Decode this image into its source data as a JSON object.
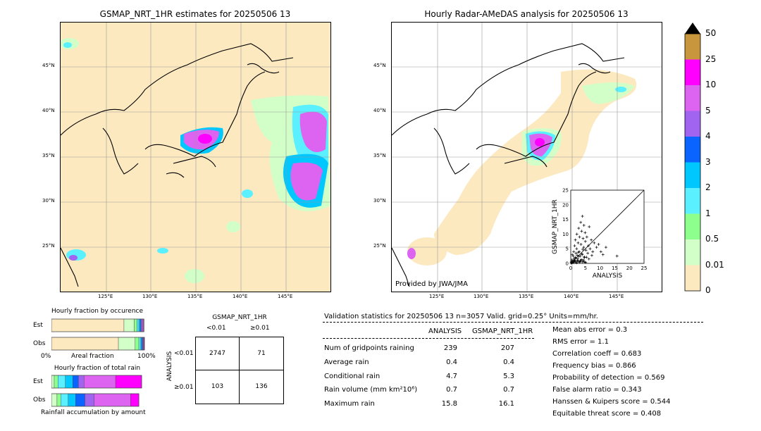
{
  "left_map": {
    "title": "GSMAP_NRT_1HR estimates for 20250506 13",
    "lat_ticks": [
      "45°N",
      "40°N",
      "35°N",
      "30°N",
      "25°N"
    ],
    "lon_ticks": [
      "125°E",
      "130°E",
      "135°E",
      "140°E",
      "145°E"
    ]
  },
  "right_map": {
    "title": "Hourly Radar-AMeDAS analysis for 20250506 13",
    "lat_ticks": [
      "45°N",
      "40°N",
      "35°N",
      "30°N",
      "25°N"
    ],
    "lon_ticks": [
      "125°E",
      "130°E",
      "135°E",
      "140°E",
      "145°E"
    ],
    "credit": "Provided by JWA/JMA"
  },
  "colorbar": {
    "labels": [
      "50",
      "25",
      "10",
      "5",
      "4",
      "3",
      "2",
      "1",
      "0.5",
      "0.01",
      "0"
    ],
    "colors": [
      "#c8963c",
      "#ff00ff",
      "#dc64f0",
      "#a064f0",
      "#0a64ff",
      "#00c8ff",
      "#5af0ff",
      "#8cff8c",
      "#d2ffc8",
      "#fde9c0"
    ]
  },
  "chart_data": [
    {
      "type": "scatter",
      "title": "",
      "xlabel": "ANALYSIS",
      "ylabel": "GSMAP_NRT_1HR",
      "xlim": [
        0,
        25
      ],
      "ylim": [
        0,
        25
      ],
      "xticks": [
        "0",
        "5",
        "10",
        "15",
        "20",
        "25"
      ],
      "yticks": [
        "0",
        "5",
        "10",
        "15",
        "20",
        "25"
      ],
      "x": [
        0.2,
        0.4,
        0.5,
        0.6,
        0.8,
        1.0,
        1.1,
        1.3,
        1.5,
        1.6,
        1.8,
        2.0,
        2.1,
        2.3,
        2.5,
        2.7,
        2.9,
        3.0,
        3.2,
        3.4,
        3.5,
        3.7,
        3.9,
        4.0,
        4.2,
        4.4,
        4.5,
        4.7,
        4.9,
        5.0,
        5.2,
        5.5,
        5.8,
        6.0,
        6.3,
        6.6,
        7.0,
        7.5,
        8.0,
        8.8,
        9.5,
        10.3,
        11.0,
        12.0,
        15.8,
        0.3,
        0.7,
        1.2,
        1.7,
        2.2,
        2.6,
        3.1,
        3.6,
        4.1,
        4.6,
        5.1,
        0.1,
        0.9,
        1.4,
        1.9,
        2.4,
        2.8,
        3.3,
        3.8,
        4.3,
        4.8,
        5.4,
        6.2,
        7.2,
        0.5,
        1.0,
        1.5,
        2.0,
        2.5,
        3.0,
        3.5,
        4.0,
        4.5
      ],
      "y": [
        0.5,
        1.2,
        3.0,
        0.8,
        2.5,
        4.0,
        1.5,
        6.0,
        2.0,
        8.0,
        3.5,
        5.0,
        10.0,
        1.0,
        7.0,
        12.0,
        4.0,
        9.0,
        2.5,
        14.0,
        6.5,
        11.0,
        3.0,
        16.1,
        8.5,
        5.5,
        13.0,
        2.0,
        10.5,
        7.5,
        4.5,
        9.0,
        3.5,
        6.0,
        12.5,
        5.0,
        8.0,
        4.0,
        7.0,
        5.5,
        6.5,
        4.0,
        3.0,
        5.5,
        2.5,
        0.2,
        0.4,
        0.9,
        1.8,
        2.8,
        3.8,
        0.6,
        1.3,
        4.8,
        2.2,
        0.3,
        0.1,
        0.7,
        1.1,
        0.5,
        1.6,
        2.4,
        0.9,
        3.3,
        1.2,
        0.4,
        2.1,
        1.5,
        2.7,
        0.2,
        0.3,
        0.6,
        0.2,
        0.8,
        0.4,
        1.0,
        0.5,
        0.7
      ]
    },
    {
      "type": "bar",
      "title": "Hourly fraction by occurence",
      "categories": [
        "Est",
        "Obs"
      ],
      "xlabel": "Areal fraction",
      "xlim_labels": [
        "0%",
        "100%"
      ],
      "series": [
        {
          "name": "0-0.01",
          "color": "#fde9c0",
          "values": [
            0.78,
            0.72
          ]
        },
        {
          "name": "0.01-0.5",
          "color": "#d2ffc8",
          "values": [
            0.11,
            0.18
          ]
        },
        {
          "name": "0.5-1",
          "color": "#8cff8c",
          "values": [
            0.03,
            0.04
          ]
        },
        {
          "name": "1-2",
          "color": "#5af0ff",
          "values": [
            0.02,
            0.02
          ]
        },
        {
          "name": "2-3",
          "color": "#00c8ff",
          "values": [
            0.015,
            0.01
          ]
        },
        {
          "name": "3-4",
          "color": "#0a64ff",
          "values": [
            0.01,
            0.01
          ]
        },
        {
          "name": "4-5",
          "color": "#a064f0",
          "values": [
            0.015,
            0.01
          ]
        },
        {
          "name": "5-10",
          "color": "#dc64f0",
          "values": [
            0.01,
            0.005
          ]
        },
        {
          "name": "10-25",
          "color": "#ff00ff",
          "values": [
            0.005,
            0.005
          ]
        },
        {
          "name": "25-50",
          "color": "#c8963c",
          "values": [
            0.0,
            0.0
          ]
        }
      ]
    },
    {
      "type": "bar",
      "title": "Hourly fraction of total rain",
      "categories": [
        "Est",
        "Obs"
      ],
      "xlabel": "Rainfall accumulation by amount",
      "series": [
        {
          "name": "0-0.01",
          "color": "#fde9c0",
          "values": [
            0.0,
            0.0
          ]
        },
        {
          "name": "0.01-0.5",
          "color": "#d2ffc8",
          "values": [
            0.03,
            0.06
          ]
        },
        {
          "name": "0.5-1",
          "color": "#8cff8c",
          "values": [
            0.04,
            0.04
          ]
        },
        {
          "name": "1-2",
          "color": "#5af0ff",
          "values": [
            0.08,
            0.08
          ]
        },
        {
          "name": "2-3",
          "color": "#00c8ff",
          "values": [
            0.08,
            0.08
          ]
        },
        {
          "name": "3-4",
          "color": "#0a64ff",
          "values": [
            0.06,
            0.1
          ]
        },
        {
          "name": "4-5",
          "color": "#a064f0",
          "values": [
            0.06,
            0.1
          ]
        },
        {
          "name": "5-10",
          "color": "#dc64f0",
          "values": [
            0.34,
            0.39
          ]
        },
        {
          "name": "10-25",
          "color": "#ff00ff",
          "values": [
            0.28,
            0.09
          ]
        },
        {
          "name": "25-50",
          "color": "#c8963c",
          "values": [
            0.0,
            0.0
          ]
        }
      ]
    },
    {
      "type": "table",
      "title": "GSMAP_NRT_1HR",
      "col_headers": [
        "<0.01",
        "≥0.01"
      ],
      "row_headers": [
        "<0.01",
        "≥0.01"
      ],
      "row_axis_label": "ANALYSIS",
      "cells": [
        [
          "2747",
          "71"
        ],
        [
          "103",
          "136"
        ]
      ]
    }
  ],
  "validation": {
    "header": "Validation statistics for 20250506 13  n=3057 Valid. grid=0.25°  Units=mm/hr.",
    "col_analysis": "ANALYSIS",
    "col_gsmap": "GSMAP_NRT_1HR",
    "rows": [
      {
        "label": "Num of gridpoints raining",
        "analysis": "239",
        "gsmap": "207"
      },
      {
        "label": "Average rain",
        "analysis": "0.4",
        "gsmap": "0.4"
      },
      {
        "label": "Conditional rain",
        "analysis": "4.7",
        "gsmap": "5.3"
      },
      {
        "label": "Rain volume (mm km²10⁶)",
        "analysis": "0.7",
        "gsmap": "0.7"
      },
      {
        "label": "Maximum rain",
        "analysis": "15.8",
        "gsmap": "16.1"
      }
    ],
    "scores": [
      "Mean abs error =    0.3",
      "RMS error =    1.1",
      "Correlation coeff =  0.683",
      "Frequency bias =  0.866",
      "Probability of detection =  0.569",
      "False alarm ratio =  0.343",
      "Hanssen & Kuipers score =  0.544",
      "Equitable threat score =  0.408"
    ]
  }
}
